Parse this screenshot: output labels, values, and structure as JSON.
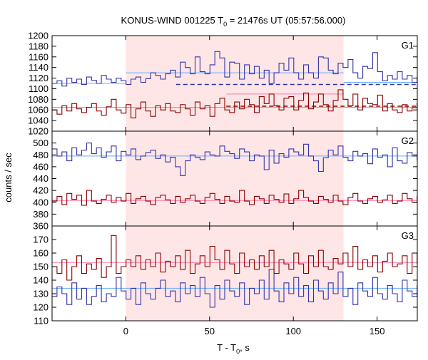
{
  "chart_data": {
    "type": "line",
    "title": {
      "prefix": "KONUS-WIND 001225 T",
      "subscript": "0",
      "suffix": " = 21476s UT (05:57:56.000)"
    },
    "xlabel": {
      "prefix": "T - T",
      "subscript": "0",
      "suffix": ", s"
    },
    "ylabel": "counts / sec",
    "xlim": [
      -44,
      174
    ],
    "xticks": [
      0,
      50,
      100,
      150
    ],
    "shaded_interval": [
      0,
      130
    ],
    "step_width": 2.944,
    "colors": {
      "blue": "#3333aa",
      "red": "#8b0000",
      "blue_ref": "#66aaff",
      "red_ref": "#ff77aa",
      "shade": "#ffe6e6"
    },
    "panels": [
      {
        "name": "G1",
        "ylim": [
          1020,
          1200
        ],
        "yticks": [
          1020,
          1040,
          1060,
          1080,
          1100,
          1120,
          1140,
          1160,
          1180,
          1200
        ],
        "series": [
          {
            "color": "blue",
            "values": [
              1110,
              1115,
              1105,
              1120,
              1112,
              1118,
              1108,
              1122,
              1116,
              1110,
              1125,
              1118,
              1112,
              1120,
              1115,
              1108,
              1118,
              1122,
              1112,
              1119,
              1130,
              1125,
              1118,
              1128,
              1135,
              1122,
              1150,
              1140,
              1128,
              1160,
              1132,
              1128,
              1145,
              1170,
              1158,
              1122,
              1150,
              1148,
              1118,
              1145,
              1128,
              1142,
              1120,
              1135,
              1110,
              1130,
              1148,
              1135,
              1158,
              1130,
              1118,
              1145,
              1130,
              1120,
              1160,
              1158,
              1135,
              1128,
              1148,
              1140,
              1155,
              1130,
              1120,
              1142,
              1138,
              1168,
              1132,
              1115,
              1125,
              1118,
              1132,
              1118,
              1125,
              1112,
              1122,
              1112,
              1116,
              1108,
              1125,
              1118,
              1140,
              1122,
              1130,
              1110
            ]
          },
          {
            "color": "red",
            "values": [
              1060,
              1052,
              1068,
              1058,
              1072,
              1062,
              1055,
              1065,
              1072,
              1058,
              1050,
              1066,
              1080,
              1060,
              1054,
              1070,
              1045,
              1062,
              1075,
              1058,
              1048,
              1068,
              1060,
              1072,
              1058,
              1055,
              1070,
              1062,
              1050,
              1075,
              1062,
              1068,
              1048,
              1072,
              1082,
              1060,
              1055,
              1075,
              1062,
              1080,
              1070,
              1055,
              1085,
              1072,
              1090,
              1068,
              1060,
              1082,
              1085,
              1060,
              1078,
              1092,
              1062,
              1075,
              1090,
              1070,
              1058,
              1078,
              1098,
              1080,
              1068,
              1090,
              1060,
              1082,
              1072,
              1070,
              1088,
              1058,
              1072,
              1060,
              1055,
              1070,
              1058,
              1064,
              1072,
              1060,
              1048,
              1065,
              1058,
              1072,
              1062,
              1068,
              1055,
              1070
            ]
          }
        ],
        "ref_lines": [
          {
            "color": "blue_ref",
            "y": 1110,
            "x": [
              -44,
              0
            ]
          },
          {
            "color": "blue_ref",
            "y": 1130,
            "x": [
              0,
              130
            ]
          },
          {
            "color": "blue_ref",
            "y": 1112,
            "x": [
              130,
              174
            ]
          },
          {
            "color": "red_ref",
            "y": 1065,
            "x": [
              -44,
              130
            ]
          },
          {
            "color": "red_ref",
            "y": 1065,
            "x": [
              130,
              174
            ]
          },
          {
            "color": "blue",
            "y": 1108,
            "x": [
              30,
              174
            ],
            "dashed": true
          },
          {
            "color": "red",
            "y": 1067,
            "x": [
              60,
              174
            ],
            "dashed": true
          },
          {
            "color": "red_ref",
            "y": 1090,
            "x": [
              60,
              130
            ]
          }
        ]
      },
      {
        "name": "G2",
        "ylim": [
          360,
          520
        ],
        "yticks": [
          360,
          380,
          400,
          420,
          440,
          460,
          480,
          500
        ],
        "series": [
          {
            "color": "blue",
            "values": [
              490,
              478,
              485,
              470,
              492,
              480,
              488,
              500,
              482,
              492,
              476,
              485,
              495,
              470,
              486,
              480,
              490,
              472,
              478,
              484,
              488,
              474,
              480,
              468,
              476,
              460,
              445,
              470,
              480,
              476,
              472,
              485,
              480,
              478,
              495,
              486,
              482,
              474,
              490,
              485,
              470,
              480,
              478,
              455,
              488,
              466,
              482,
              476,
              490,
              485,
              480,
              498,
              478,
              470,
              452,
              475,
              488,
              480,
              495,
              476,
              470,
              486,
              478,
              482,
              465,
              490,
              476,
              480,
              460,
              492,
              470,
              466,
              484,
              478,
              472,
              488,
              480,
              475,
              470,
              490,
              482,
              476,
              494,
              485
            ]
          },
          {
            "color": "red",
            "values": [
              402,
              410,
              396,
              415,
              405,
              412,
              395,
              420,
              402,
              398,
              405,
              412,
              400,
              408,
              402,
              415,
              398,
              406,
              410,
              402,
              396,
              408,
              412,
              404,
              398,
              410,
              400,
              406,
              412,
              402,
              398,
              408,
              415,
              405,
              398,
              410,
              402,
              400,
              420,
              402,
              396,
              410,
              406,
              398,
              412,
              405,
              400,
              414,
              398,
              406,
              420,
              408,
              402,
              398,
              410,
              405,
              400,
              412,
              402,
              396,
              408,
              415,
              402,
              398,
              406,
              410,
              400,
              404,
              412,
              398,
              402,
              415,
              406,
              400,
              410,
              402,
              396,
              408,
              420,
              404,
              398,
              412,
              405,
              395
            ]
          }
        ],
        "ref_lines": [
          {
            "color": "blue_ref",
            "y": 478,
            "x": [
              -44,
              174
            ]
          },
          {
            "color": "red_ref",
            "y": 403,
            "x": [
              -44,
              174
            ]
          }
        ]
      },
      {
        "name": "G3",
        "ylim": [
          110,
          180
        ],
        "yticks": [
          110,
          120,
          130,
          140,
          150,
          160,
          170
        ],
        "series": [
          {
            "color": "blue",
            "values": [
              128,
              135,
              130,
              122,
              138,
              126,
              134,
              122,
              128,
              136,
              124,
              130,
              128,
              142,
              132,
              126,
              134,
              122,
              138,
              130,
              126,
              134,
              140,
              128,
              132,
              124,
              138,
              130,
              136,
              128,
              142,
              130,
              120,
              136,
              126,
              140,
              132,
              128,
              138,
              122,
              134,
              130,
              140,
              126,
              148,
              132,
              124,
              138,
              130,
              142,
              128,
              136,
              124,
              140,
              132,
              126,
              138,
              130,
              146,
              128,
              134,
              122,
              138,
              132,
              128,
              142,
              130,
              126,
              136,
              130,
              124,
              140,
              132,
              128,
              136,
              130,
              142,
              126,
              134,
              130,
              128,
              138,
              132,
              130
            ]
          },
          {
            "color": "red",
            "values": [
              150,
              145,
              155,
              140,
              150,
              158,
              145,
              152,
              148,
              156,
              142,
              150,
              173,
              145,
              150,
              155,
              150,
              158,
              148,
              155,
              150,
              160,
              146,
              154,
              150,
              158,
              148,
              162,
              145,
              152,
              158,
              150,
              165,
              155,
              148,
              162,
              152,
              145,
              160,
              150,
              155,
              148,
              158,
              150,
              162,
              145,
              155,
              152,
              148,
              160,
              152,
              145,
              158,
              150,
              162,
              150,
              148,
              156,
              152,
              160,
              150,
              165,
              148,
              155,
              150,
              158,
              146,
              154,
              160,
              150,
              152,
              158,
              145,
              160,
              152,
              148,
              155,
              150,
              162,
              150,
              155,
              148,
              158,
              150
            ]
          }
        ],
        "ref_lines": [
          {
            "color": "blue_ref",
            "y": 134,
            "x": [
              -44,
              174
            ]
          },
          {
            "color": "red_ref",
            "y": 153,
            "x": [
              -44,
              174
            ]
          }
        ]
      }
    ]
  }
}
